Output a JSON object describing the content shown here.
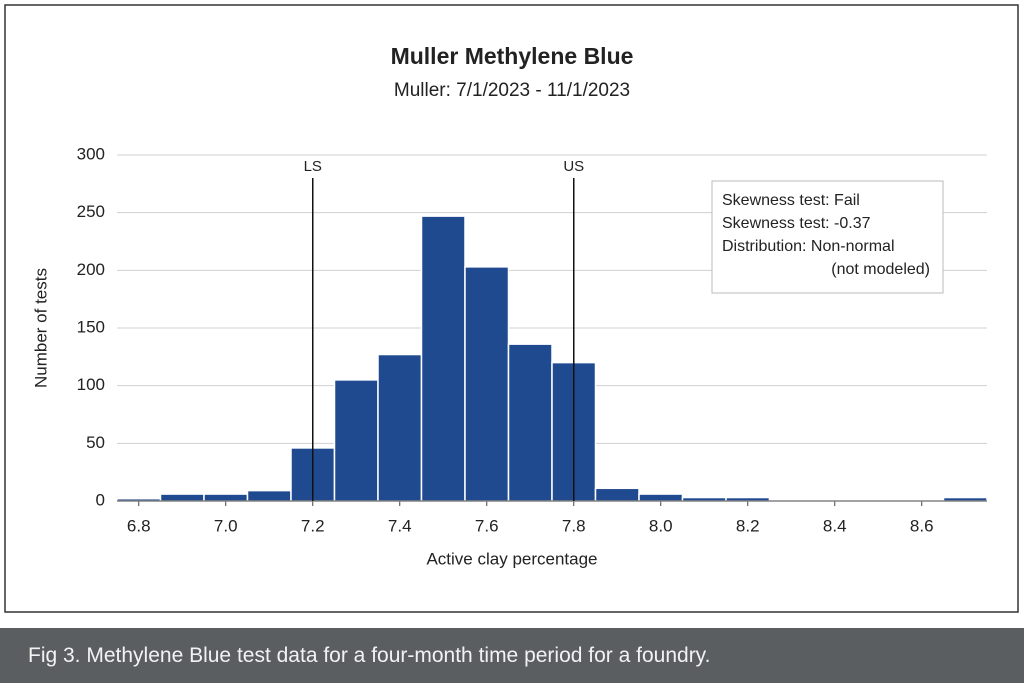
{
  "chart_data": {
    "type": "histogram",
    "title": "Muller Methylene Blue",
    "subtitle": "Muller: 7/1/2023 - 11/1/2023",
    "x_label": "Active clay percentage",
    "y_label": "Number of tests",
    "bins": [
      6.75,
      6.85,
      6.95,
      7.05,
      7.15,
      7.25,
      7.35,
      7.45,
      7.55,
      7.65,
      7.75,
      7.85,
      7.95,
      8.05,
      8.15,
      8.25,
      8.35,
      8.45,
      8.55,
      8.65,
      8.75
    ],
    "counts": [
      2,
      6,
      6,
      9,
      46,
      105,
      127,
      247,
      203,
      136,
      120,
      11,
      6,
      3,
      3,
      1,
      1,
      1,
      1,
      3
    ],
    "color": "#1f4a8f",
    "xlim": [
      6.75,
      8.75
    ],
    "xticks": [
      {
        "value": 6.8,
        "label": "6.8"
      },
      {
        "value": 7.0,
        "label": "7.0"
      },
      {
        "value": 7.2,
        "label": "7.2"
      },
      {
        "value": 7.4,
        "label": "7.4"
      },
      {
        "value": 7.6,
        "label": "7.6"
      },
      {
        "value": 7.8,
        "label": "7.8"
      },
      {
        "value": 8.0,
        "label": "8.0"
      },
      {
        "value": 8.2,
        "label": "8.2"
      },
      {
        "value": 8.4,
        "label": "8.4"
      },
      {
        "value": 8.6,
        "label": "8.6"
      }
    ],
    "ylim": [
      0,
      300
    ],
    "yticks": [
      0,
      50,
      100,
      150,
      200,
      250,
      300
    ],
    "grid": true,
    "spec_lines": [
      {
        "label": "LS",
        "value": 7.2
      },
      {
        "label": "US",
        "value": 7.8
      }
    ],
    "annotation": [
      "Skewness test: Fail",
      "Skewness test: -0.37",
      "Distribution: Non-normal",
      "(not modeled)"
    ]
  },
  "caption": "Fig 3. Methylene Blue test data for a four-month time period for a foundry."
}
